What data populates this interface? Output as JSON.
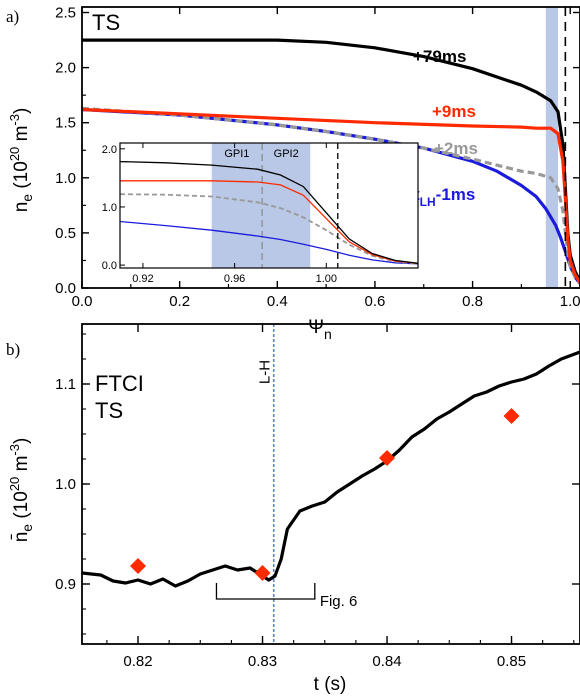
{
  "chart_data": [
    {
      "panel": "a)",
      "type": "line",
      "title": "TS",
      "xlabel": "Ψn",
      "ylabel": "ne (10^20 m^-3)",
      "xlim": [
        0,
        1.02
      ],
      "ylim": [
        0,
        2.55
      ],
      "xticks": [
        "0.0",
        "0.2",
        "0.4",
        "0.6",
        "0.8",
        "1.0"
      ],
      "yticks": [
        "0.0",
        "0.5",
        "1.0",
        "1.5",
        "2.0",
        "2.5"
      ],
      "shaded_region": [
        0.95,
        0.975
      ],
      "vline": 0.99,
      "colors": {
        "+79ms": "#000000",
        "+9ms": "#ff2a00",
        "+2ms": "#999999",
        "tLH-1ms": "#1b1bdd",
        "shade": "#b9c8e6"
      },
      "series": [
        {
          "name": "+79ms",
          "x": [
            0,
            0.2,
            0.4,
            0.5,
            0.6,
            0.7,
            0.8,
            0.9,
            0.93,
            0.96,
            0.975,
            0.985,
            0.99,
            0.995,
            1.0,
            1.01,
            1.02
          ],
          "y": [
            2.25,
            2.25,
            2.25,
            2.23,
            2.18,
            2.1,
            1.99,
            1.84,
            1.78,
            1.7,
            1.6,
            1.3,
            0.9,
            0.5,
            0.3,
            0.15,
            0.06
          ]
        },
        {
          "name": "+9ms",
          "x": [
            0,
            0.2,
            0.4,
            0.6,
            0.8,
            0.9,
            0.93,
            0.96,
            0.975,
            0.985,
            0.99,
            0.995,
            1.0,
            1.01,
            1.02
          ],
          "y": [
            1.62,
            1.58,
            1.54,
            1.5,
            1.47,
            1.46,
            1.45,
            1.45,
            1.4,
            1.15,
            0.8,
            0.45,
            0.25,
            0.12,
            0.05
          ]
        },
        {
          "name": "+2ms",
          "x": [
            0,
            0.2,
            0.4,
            0.5,
            0.6,
            0.7,
            0.8,
            0.9,
            0.93,
            0.96,
            0.975,
            0.985,
            0.99,
            0.995,
            1.0,
            1.01,
            1.02
          ],
          "y": [
            1.63,
            1.57,
            1.48,
            1.42,
            1.35,
            1.27,
            1.17,
            1.06,
            1.04,
            1.0,
            0.9,
            0.7,
            0.5,
            0.32,
            0.2,
            0.1,
            0.04
          ]
        },
        {
          "name": "tLH-1ms",
          "x": [
            0,
            0.2,
            0.4,
            0.5,
            0.6,
            0.7,
            0.8,
            0.85,
            0.9,
            0.93,
            0.95,
            0.97,
            0.98,
            0.99,
            1.0,
            1.01,
            1.02
          ],
          "y": [
            1.62,
            1.57,
            1.48,
            1.42,
            1.35,
            1.27,
            1.15,
            1.06,
            0.93,
            0.83,
            0.72,
            0.57,
            0.46,
            0.33,
            0.2,
            0.1,
            0.04
          ]
        }
      ],
      "labels": {
        "s79": "+79ms",
        "s9": "+9ms",
        "s2": "+2ms",
        "t": "t",
        "tsub": "LH",
        "tsuf": "-1ms"
      },
      "inset": {
        "xlim": [
          0.91,
          1.04
        ],
        "ylim": [
          -0.05,
          2.1
        ],
        "xticks": [
          "0.92",
          "0.96",
          "1.00"
        ],
        "yticks": [
          "0.0",
          "1.0",
          "2.0"
        ],
        "gpi1_region": [
          0.95,
          0.972
        ],
        "gpi2_region": [
          0.972,
          0.993
        ],
        "gpi_labels": [
          "GPI1",
          "GPI2"
        ],
        "gpi_divider": 0.972,
        "vline": 1.005,
        "series": [
          {
            "name": "+79ms",
            "x": [
              0.91,
              0.93,
              0.95,
              0.97,
              0.98,
              0.99,
              1.0,
              1.01,
              1.02,
              1.03,
              1.04
            ],
            "y": [
              1.78,
              1.76,
              1.72,
              1.65,
              1.55,
              1.35,
              0.9,
              0.45,
              0.2,
              0.08,
              0.03
            ]
          },
          {
            "name": "+9ms",
            "x": [
              0.91,
              0.93,
              0.95,
              0.97,
              0.98,
              0.99,
              1.0,
              1.01,
              1.02,
              1.03,
              1.04
            ],
            "y": [
              1.45,
              1.45,
              1.45,
              1.43,
              1.38,
              1.2,
              0.8,
              0.4,
              0.18,
              0.07,
              0.03
            ]
          },
          {
            "name": "+2ms",
            "x": [
              0.91,
              0.93,
              0.95,
              0.97,
              0.98,
              0.99,
              1.0,
              1.01,
              1.02,
              1.03,
              1.04
            ],
            "y": [
              1.22,
              1.21,
              1.18,
              1.08,
              0.98,
              0.82,
              0.6,
              0.35,
              0.16,
              0.06,
              0.02
            ]
          },
          {
            "name": "tLH-1ms",
            "x": [
              0.91,
              0.93,
              0.95,
              0.97,
              0.98,
              0.99,
              1.0,
              1.01,
              1.02,
              1.03,
              1.04
            ],
            "y": [
              0.75,
              0.68,
              0.6,
              0.5,
              0.44,
              0.36,
              0.27,
              0.17,
              0.09,
              0.04,
              0.02
            ]
          }
        ]
      }
    },
    {
      "panel": "b)",
      "type": "line",
      "xlabel": "t (s)",
      "ylabel": "n̄e (10^20 m^-3)",
      "xlim": [
        0.8155,
        0.8555
      ],
      "ylim": [
        0.84,
        1.16
      ],
      "xticks": [
        "0.82",
        "0.83",
        "0.84",
        "0.85"
      ],
      "yticks": [
        "0.9",
        "1.0",
        "1.1"
      ],
      "legend": [
        "FTCI",
        "TS"
      ],
      "colors": {
        "FTCI": "#000000",
        "TS": "#ff2a00",
        "LH": "#5b86c4"
      },
      "lh_time": 0.8309,
      "lh_label": "L-H",
      "fig_bracket": [
        0.8263,
        0.8342
      ],
      "fig_label": "Fig. 6",
      "ftci": {
        "x": [
          0.8155,
          0.817,
          0.818,
          0.819,
          0.82,
          0.821,
          0.822,
          0.823,
          0.824,
          0.825,
          0.826,
          0.827,
          0.828,
          0.829,
          0.8295,
          0.8305,
          0.831,
          0.8315,
          0.832,
          0.833,
          0.834,
          0.835,
          0.836,
          0.837,
          0.838,
          0.839,
          0.84,
          0.841,
          0.842,
          0.843,
          0.844,
          0.845,
          0.846,
          0.847,
          0.848,
          0.849,
          0.85,
          0.851,
          0.852,
          0.853,
          0.854,
          0.8555
        ],
        "y": [
          0.911,
          0.909,
          0.903,
          0.901,
          0.904,
          0.9,
          0.905,
          0.898,
          0.903,
          0.91,
          0.914,
          0.918,
          0.914,
          0.916,
          0.912,
          0.904,
          0.908,
          0.925,
          0.955,
          0.973,
          0.978,
          0.982,
          0.992,
          1.0,
          1.008,
          1.015,
          1.023,
          1.034,
          1.047,
          1.055,
          1.065,
          1.072,
          1.08,
          1.088,
          1.092,
          1.098,
          1.102,
          1.105,
          1.11,
          1.118,
          1.125,
          1.132
        ]
      },
      "ts_points": {
        "x": [
          0.82,
          0.83,
          0.84,
          0.85
        ],
        "y": [
          0.918,
          0.911,
          1.026,
          1.068
        ]
      }
    }
  ],
  "legend_b": {
    "ftci": "FTCI",
    "ts": "TS"
  }
}
